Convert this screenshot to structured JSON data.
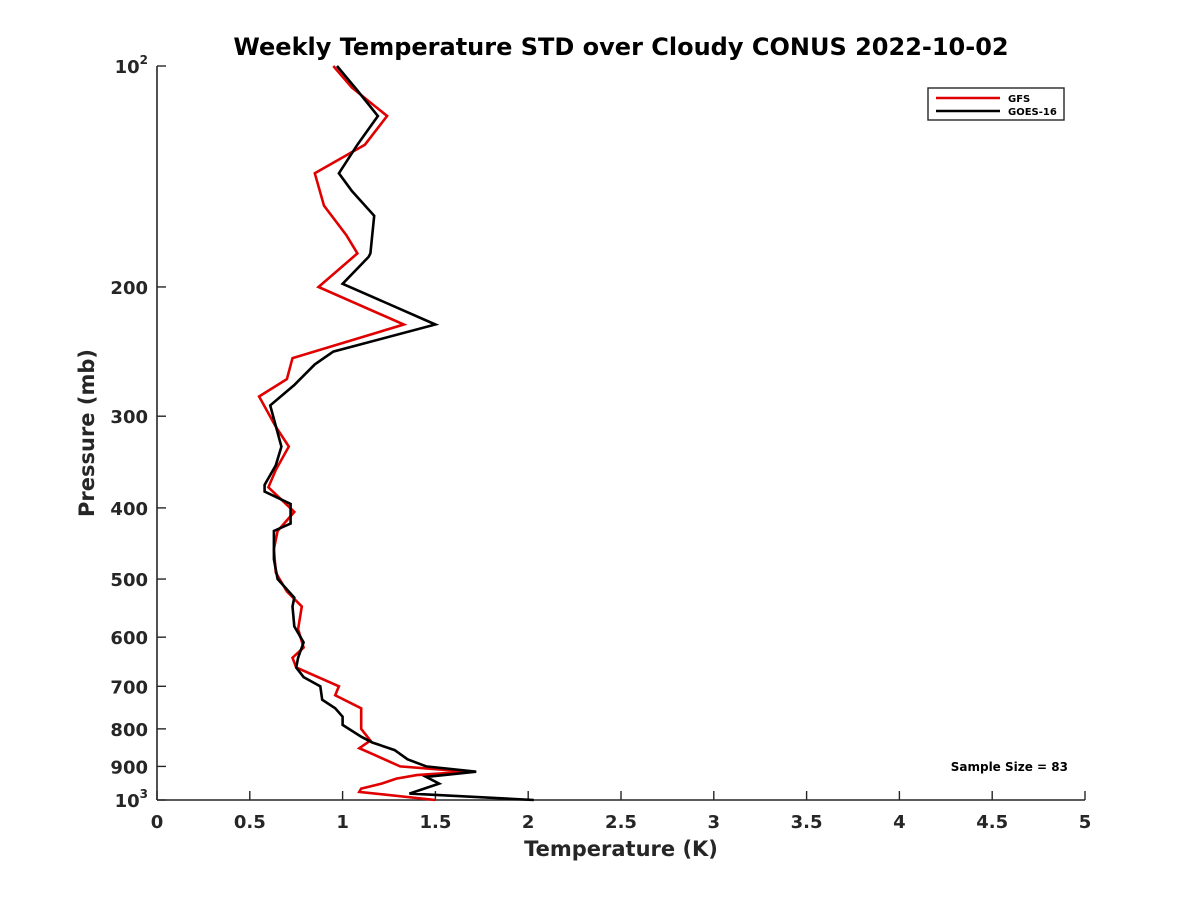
{
  "chart_data": {
    "type": "line",
    "title": "Weekly Temperature STD over Cloudy CONUS 2022-10-02",
    "xlabel": "Temperature (K)",
    "ylabel": "Pressure (mb)",
    "xlim": [
      0,
      5
    ],
    "ylim": [
      100,
      1000
    ],
    "y_scale": "log",
    "y_reversed": true,
    "x_ticks": [
      "0",
      "0.5",
      "1",
      "1.5",
      "2",
      "2.5",
      "3",
      "3.5",
      "4",
      "4.5",
      "5"
    ],
    "y_ticks": [
      {
        "value": 100,
        "label": "10",
        "exp": "2"
      },
      {
        "value": 200,
        "label": "200"
      },
      {
        "value": 300,
        "label": "300"
      },
      {
        "value": 400,
        "label": "400"
      },
      {
        "value": 500,
        "label": "500"
      },
      {
        "value": 600,
        "label": "600"
      },
      {
        "value": 700,
        "label": "700"
      },
      {
        "value": 800,
        "label": "800"
      },
      {
        "value": 900,
        "label": "900"
      },
      {
        "value": 1000,
        "label": "10",
        "exp": "3"
      }
    ],
    "grid": false,
    "legend_position": "top-right",
    "annotation": "Sample Size = 83",
    "series": [
      {
        "name": "GFS",
        "color": "#e00000",
        "points": [
          [
            0.95,
            100
          ],
          [
            1.05,
            107
          ],
          [
            1.24,
            117
          ],
          [
            1.12,
            128
          ],
          [
            0.85,
            140
          ],
          [
            0.9,
            155
          ],
          [
            1.02,
            170
          ],
          [
            1.08,
            180
          ],
          [
            0.87,
            200
          ],
          [
            1.33,
            225
          ],
          [
            0.73,
            250
          ],
          [
            0.7,
            267
          ],
          [
            0.55,
            282
          ],
          [
            0.64,
            310
          ],
          [
            0.71,
            330
          ],
          [
            0.64,
            355
          ],
          [
            0.6,
            375
          ],
          [
            0.74,
            405
          ],
          [
            0.65,
            430
          ],
          [
            0.63,
            455
          ],
          [
            0.64,
            490
          ],
          [
            0.7,
            520
          ],
          [
            0.78,
            545
          ],
          [
            0.76,
            585
          ],
          [
            0.79,
            620
          ],
          [
            0.73,
            640
          ],
          [
            0.75,
            660
          ],
          [
            0.98,
            700
          ],
          [
            0.96,
            720
          ],
          [
            1.1,
            750
          ],
          [
            1.1,
            800
          ],
          [
            1.15,
            830
          ],
          [
            1.09,
            850
          ],
          [
            1.18,
            870
          ],
          [
            1.31,
            900
          ],
          [
            1.67,
            915
          ],
          [
            1.4,
            925
          ],
          [
            1.29,
            935
          ],
          [
            1.21,
            950
          ],
          [
            1.1,
            965
          ],
          [
            1.09,
            975
          ],
          [
            1.5,
            1000
          ]
        ]
      },
      {
        "name": "GOES-16",
        "color": "#000000",
        "points": [
          [
            0.97,
            100
          ],
          [
            1.08,
            108
          ],
          [
            1.19,
            117
          ],
          [
            1.08,
            128
          ],
          [
            0.98,
            140
          ],
          [
            1.05,
            148
          ],
          [
            1.17,
            160
          ],
          [
            1.15,
            180
          ],
          [
            1.14,
            182
          ],
          [
            1.0,
            198
          ],
          [
            1.5,
            225
          ],
          [
            0.95,
            245
          ],
          [
            0.85,
            255
          ],
          [
            0.74,
            272
          ],
          [
            0.61,
            290
          ],
          [
            0.67,
            330
          ],
          [
            0.64,
            350
          ],
          [
            0.58,
            372
          ],
          [
            0.58,
            380
          ],
          [
            0.72,
            395
          ],
          [
            0.72,
            420
          ],
          [
            0.63,
            430
          ],
          [
            0.63,
            470
          ],
          [
            0.65,
            500
          ],
          [
            0.74,
            530
          ],
          [
            0.73,
            545
          ],
          [
            0.74,
            580
          ],
          [
            0.79,
            610
          ],
          [
            0.76,
            640
          ],
          [
            0.75,
            660
          ],
          [
            0.79,
            680
          ],
          [
            0.88,
            700
          ],
          [
            0.89,
            730
          ],
          [
            0.96,
            750
          ],
          [
            1.0,
            770
          ],
          [
            1.0,
            790
          ],
          [
            1.1,
            820
          ],
          [
            1.16,
            835
          ],
          [
            1.28,
            855
          ],
          [
            1.35,
            880
          ],
          [
            1.45,
            900
          ],
          [
            1.72,
            915
          ],
          [
            1.45,
            930
          ],
          [
            1.52,
            950
          ],
          [
            1.36,
            980
          ],
          [
            2.03,
            1000
          ]
        ]
      }
    ]
  }
}
